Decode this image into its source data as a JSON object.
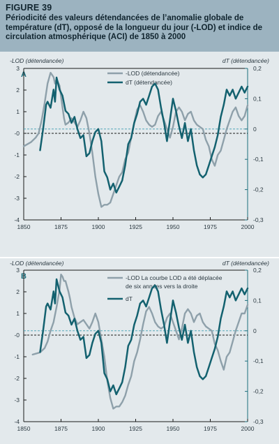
{
  "figure": {
    "label": "FIGURE 39",
    "title": "Périodicité des valeurs détendancées de l’anomalie globale de température (dT), opposé de la longueur du jour (-LOD) et indice de circulation atmosphérique (ACI) de 1850 à 2000"
  },
  "colors": {
    "lod": "#8ea0aa",
    "dt": "#13616f",
    "zero_dashed": "#3e9fb1",
    "zero_solid": "#1a1a1a",
    "axis_right": "#1b6e7c"
  },
  "chart_data": [
    {
      "type": "line",
      "panel": "A",
      "ylabel_left": "-LOD (détendancée)",
      "ylabel_right": "dT (détendancée)",
      "left_ticks": [
        "3",
        "2",
        "1",
        "-0",
        "-1",
        "-2",
        "-3",
        "-4"
      ],
      "right_ticks": [
        "0,2",
        "0,1",
        "0",
        "-0,1",
        "-0,2",
        "-0,3"
      ],
      "x_ticks": [
        "1850",
        "1875",
        "1900",
        "1925",
        "1950",
        "1975",
        "2000"
      ],
      "xlim": [
        1850,
        2000
      ],
      "ylim_left": [
        -4,
        3
      ],
      "ylim_right": [
        -0.3,
        0.2
      ],
      "series": [
        {
          "name": "-LOD (détendancée)",
          "axis": "left",
          "x": [
            1850,
            1855,
            1858,
            1860,
            1862,
            1864,
            1866,
            1868,
            1869,
            1870,
            1871,
            1872,
            1874,
            1875,
            1876,
            1877,
            1878,
            1880,
            1882,
            1884,
            1886,
            1888,
            1890,
            1892,
            1894,
            1896,
            1898,
            1900,
            1902,
            1904,
            1906,
            1908,
            1910,
            1912,
            1914,
            1916,
            1918,
            1920,
            1922,
            1924,
            1926,
            1928,
            1930,
            1932,
            1934,
            1936,
            1938,
            1940,
            1942,
            1944,
            1946,
            1948,
            1950,
            1952,
            1954,
            1956,
            1958,
            1960,
            1962,
            1964,
            1966,
            1968,
            1970,
            1972,
            1974,
            1976,
            1978,
            1980,
            1982,
            1984,
            1986,
            1988,
            1990,
            1992,
            1994,
            1996,
            1998,
            2000
          ],
          "y": [
            -0.6,
            -0.4,
            -0.2,
            0.0,
            0.6,
            1.4,
            2.3,
            2.8,
            2.7,
            2.6,
            2.3,
            2.5,
            2.2,
            1.7,
            1.2,
            0.7,
            0.4,
            0.5,
            0.7,
            0.5,
            0.3,
            0.6,
            1.0,
            0.7,
            0.0,
            -0.9,
            -2.0,
            -2.8,
            -3.4,
            -3.3,
            -3.3,
            -3.2,
            -2.8,
            -2.4,
            -2.0,
            -1.8,
            -1.2,
            -0.9,
            -0.2,
            0.5,
            1.1,
            1.3,
            1.0,
            0.6,
            0.4,
            0.3,
            0.4,
            0.8,
            1.0,
            0.6,
            0.2,
            -0.2,
            0.3,
            1.0,
            1.2,
            1.0,
            0.6,
            0.9,
            1.0,
            0.6,
            0.4,
            0.3,
            0.2,
            -0.3,
            -0.6,
            -1.2,
            -1.5,
            -1.0,
            -0.8,
            -0.3,
            0.2,
            0.6,
            1.0,
            1.2,
            0.8,
            0.6,
            0.8,
            1.3
          ]
        },
        {
          "name": "dT (détendancée)",
          "axis": "right",
          "x": [
            1861,
            1863,
            1865,
            1866,
            1868,
            1870,
            1871,
            1872,
            1874,
            1876,
            1878,
            1880,
            1882,
            1884,
            1886,
            1888,
            1890,
            1892,
            1894,
            1896,
            1898,
            1900,
            1902,
            1904,
            1906,
            1908,
            1910,
            1912,
            1914,
            1916,
            1918,
            1920,
            1922,
            1924,
            1926,
            1928,
            1930,
            1932,
            1934,
            1936,
            1938,
            1940,
            1942,
            1944,
            1946,
            1948,
            1950,
            1952,
            1954,
            1956,
            1958,
            1960,
            1962,
            1964,
            1966,
            1968,
            1970,
            1972,
            1974,
            1976,
            1978,
            1980,
            1982,
            1984,
            1986,
            1988,
            1990,
            1992,
            1994,
            1996,
            1998,
            2000
          ],
          "y": [
            -0.07,
            0.0,
            0.08,
            0.09,
            0.07,
            0.13,
            0.09,
            0.17,
            0.13,
            0.11,
            0.06,
            0.05,
            0.02,
            0.04,
            0.0,
            -0.03,
            -0.02,
            -0.09,
            -0.08,
            -0.04,
            -0.01,
            0.0,
            -0.04,
            -0.14,
            -0.16,
            -0.2,
            -0.18,
            -0.21,
            -0.19,
            -0.17,
            -0.12,
            -0.05,
            -0.03,
            0.02,
            0.05,
            0.09,
            0.1,
            0.08,
            0.11,
            0.14,
            0.15,
            0.13,
            0.07,
            0.02,
            -0.04,
            0.03,
            0.1,
            0.06,
            0.01,
            -0.03,
            0.02,
            -0.04,
            0.0,
            -0.07,
            -0.12,
            -0.15,
            -0.16,
            -0.15,
            -0.12,
            -0.09,
            -0.06,
            -0.02,
            0.04,
            0.08,
            0.13,
            0.11,
            0.13,
            0.1,
            0.12,
            0.14,
            0.12,
            0.14
          ]
        }
      ]
    },
    {
      "type": "line",
      "panel": "B",
      "ylabel_left": "-LOD (détendancée)",
      "ylabel_right": "dT (détendancée)",
      "left_ticks": [
        "3",
        "2",
        "1",
        "-0",
        "-1",
        "-2",
        "-3",
        "-4"
      ],
      "right_ticks": [
        "0,2",
        "0,1",
        "0",
        "-0,1",
        "-0,2",
        "-0,3"
      ],
      "x_ticks": [
        "1850",
        "1875",
        "1900",
        "1925",
        "1950",
        "1975",
        "2000"
      ],
      "xlim": [
        1850,
        2000
      ],
      "ylim_left": [
        -4,
        3
      ],
      "ylim_right": [
        -0.3,
        0.2
      ],
      "series": [
        {
          "name": "-LOD La courbe LOD a été déplacée de six années vers la droite",
          "axis": "left",
          "x": [
            1856,
            1861,
            1864,
            1866,
            1868,
            1870,
            1872,
            1874,
            1875,
            1876,
            1877,
            1878,
            1880,
            1881,
            1882,
            1884,
            1886,
            1888,
            1890,
            1892,
            1894,
            1896,
            1898,
            1900,
            1902,
            1904,
            1906,
            1908,
            1910,
            1912,
            1914,
            1916,
            1918,
            1920,
            1922,
            1924,
            1926,
            1928,
            1930,
            1932,
            1934,
            1936,
            1938,
            1940,
            1942,
            1944,
            1946,
            1948,
            1950,
            1952,
            1954,
            1956,
            1958,
            1960,
            1962,
            1964,
            1966,
            1968,
            1970,
            1972,
            1974,
            1976,
            1978,
            1980,
            1982,
            1984,
            1986,
            1988,
            1990,
            1992,
            1994,
            1996,
            1998,
            2000
          ],
          "y": [
            -0.9,
            -0.8,
            -0.6,
            -0.3,
            0.2,
            0.6,
            1.3,
            2.1,
            2.8,
            2.7,
            2.5,
            2.5,
            2.0,
            1.7,
            1.3,
            0.8,
            0.5,
            0.6,
            0.7,
            0.5,
            0.3,
            0.6,
            1.0,
            0.6,
            -0.2,
            -1.0,
            -2.1,
            -2.9,
            -3.4,
            -3.3,
            -3.3,
            -3.1,
            -2.8,
            -2.3,
            -1.9,
            -1.2,
            -0.8,
            -0.2,
            0.5,
            1.1,
            1.3,
            1.0,
            0.6,
            0.4,
            0.3,
            0.4,
            0.8,
            1.0,
            0.6,
            0.2,
            -0.2,
            0.3,
            1.0,
            1.2,
            1.0,
            0.6,
            0.9,
            1.0,
            0.6,
            0.4,
            0.3,
            0.2,
            -0.4,
            -0.7,
            -1.2,
            -1.6,
            -1.0,
            -0.8,
            -0.3,
            0.2,
            0.6,
            1.0,
            1.0,
            1.4
          ]
        },
        {
          "name": "dT",
          "axis": "right",
          "x": [
            1861,
            1863,
            1865,
            1866,
            1868,
            1870,
            1871,
            1872,
            1874,
            1876,
            1878,
            1880,
            1882,
            1884,
            1886,
            1888,
            1890,
            1892,
            1894,
            1896,
            1898,
            1900,
            1902,
            1904,
            1906,
            1908,
            1910,
            1912,
            1914,
            1916,
            1918,
            1920,
            1922,
            1924,
            1926,
            1928,
            1930,
            1932,
            1934,
            1936,
            1938,
            1940,
            1942,
            1944,
            1946,
            1948,
            1950,
            1952,
            1954,
            1956,
            1958,
            1960,
            1962,
            1964,
            1966,
            1968,
            1970,
            1972,
            1974,
            1976,
            1978,
            1980,
            1982,
            1984,
            1986,
            1988,
            1990,
            1992,
            1994,
            1996,
            1998,
            2000
          ],
          "y": [
            -0.07,
            0.0,
            0.08,
            0.09,
            0.07,
            0.13,
            0.09,
            0.17,
            0.13,
            0.11,
            0.06,
            0.05,
            0.02,
            0.04,
            0.0,
            -0.03,
            -0.02,
            -0.09,
            -0.08,
            -0.04,
            -0.01,
            0.0,
            -0.04,
            -0.14,
            -0.16,
            -0.2,
            -0.18,
            -0.21,
            -0.19,
            -0.17,
            -0.12,
            -0.05,
            -0.03,
            0.02,
            0.05,
            0.09,
            0.1,
            0.08,
            0.11,
            0.14,
            0.15,
            0.13,
            0.07,
            0.02,
            -0.04,
            0.03,
            0.1,
            0.06,
            0.01,
            -0.03,
            0.02,
            -0.04,
            0.0,
            -0.07,
            -0.12,
            -0.15,
            -0.16,
            -0.15,
            -0.12,
            -0.09,
            -0.06,
            -0.02,
            0.04,
            0.08,
            0.13,
            0.11,
            0.13,
            0.1,
            0.12,
            0.14,
            0.12,
            0.14
          ]
        }
      ]
    }
  ]
}
